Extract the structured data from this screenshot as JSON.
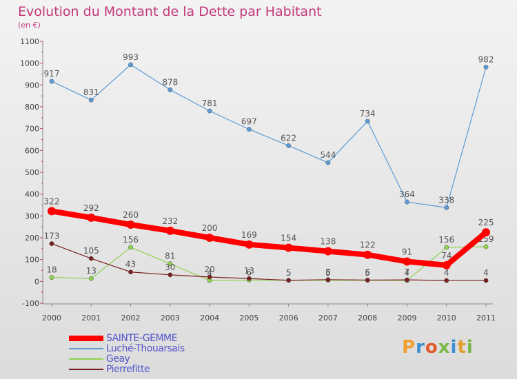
{
  "chart_data": {
    "type": "line",
    "title": "Evolution du Montant de la Dette par Habitant",
    "subtitle": "(en €)",
    "categories": [
      "2000",
      "2001",
      "2002",
      "2003",
      "2004",
      "2005",
      "2006",
      "2007",
      "2008",
      "2009",
      "2010",
      "2011"
    ],
    "ylim": [
      -100,
      1100
    ],
    "yticks": [
      -100,
      0,
      100,
      200,
      300,
      400,
      500,
      600,
      700,
      800,
      900,
      1000,
      1100
    ],
    "grid": false,
    "legend_position": "bottom-left",
    "series": [
      {
        "name": "SAINTE-GEMME",
        "color": "#ff0000",
        "values": [
          322,
          292,
          260,
          232,
          200,
          169,
          154,
          138,
          122,
          91,
          74,
          225
        ]
      },
      {
        "name": "Luché-Thouarsais",
        "color": "#5b9bd5",
        "values": [
          917,
          831,
          993,
          878,
          781,
          697,
          622,
          544,
          734,
          364,
          338,
          982
        ]
      },
      {
        "name": "Geay",
        "color": "#8fd14f",
        "values": [
          18,
          13,
          156,
          81,
          4,
          6,
          5,
          5,
          5,
          4,
          156,
          159
        ]
      },
      {
        "name": "Pierrefitte",
        "color": "#7a1f1f",
        "values": [
          173,
          105,
          43,
          30,
          20,
          13,
          5,
          8,
          6,
          7,
          4,
          4
        ]
      }
    ]
  },
  "logo": {
    "text": "Proxiti",
    "letters": [
      "P",
      "r",
      "o",
      "x",
      "i",
      "t",
      "i"
    ],
    "colors": [
      "#f0a030",
      "#3a8fd0",
      "#e05a2a",
      "#7ab84a",
      "#3a8fd0",
      "#e0a030",
      "#7ab84a"
    ]
  }
}
